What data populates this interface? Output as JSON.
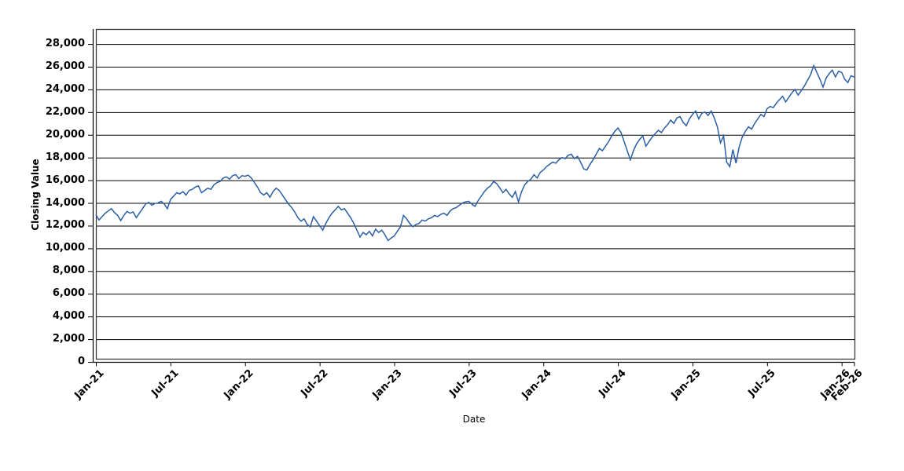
{
  "chart_data": {
    "type": "line",
    "title": "",
    "xlabel": "Date",
    "ylabel": "Closing Value",
    "grid": "horizontal",
    "legend": "none",
    "line_color": "#2A5FA5",
    "grid_color": "#000000",
    "border_color": "#3a3a3a",
    "ylim": [
      0,
      29300
    ],
    "x_range": [
      "Jan-21",
      "Feb-26"
    ],
    "x_ticks": [
      {
        "label": "Jan-21",
        "month": 0
      },
      {
        "label": "Jul-21",
        "month": 6
      },
      {
        "label": "Jan-22",
        "month": 12
      },
      {
        "label": "Jul-22",
        "month": 18
      },
      {
        "label": "Jan-23",
        "month": 24
      },
      {
        "label": "Jul-23",
        "month": 30
      },
      {
        "label": "Jan-24",
        "month": 36
      },
      {
        "label": "Jul-24",
        "month": 42
      },
      {
        "label": "Jan-25",
        "month": 48
      },
      {
        "label": "Jul-25",
        "month": 54
      },
      {
        "label": "Jan-26",
        "month": 60
      },
      {
        "label": "Feb-26",
        "month": 61
      }
    ],
    "y_ticks": [
      {
        "label": "0",
        "value": 0
      },
      {
        "label": "2,000",
        "value": 2000
      },
      {
        "label": "4,000",
        "value": 4000
      },
      {
        "label": "6,000",
        "value": 6000
      },
      {
        "label": "8,000",
        "value": 8000
      },
      {
        "label": "10,000",
        "value": 10000
      },
      {
        "label": "12,000",
        "value": 12000
      },
      {
        "label": "14,000",
        "value": 14000
      },
      {
        "label": "16,000",
        "value": 16000
      },
      {
        "label": "18,000",
        "value": 18000
      },
      {
        "label": "20,000",
        "value": 20000
      },
      {
        "label": "22,000",
        "value": 22000
      },
      {
        "label": "24,000",
        "value": 24000
      },
      {
        "label": "26,000",
        "value": 26000
      },
      {
        "label": "28,000",
        "value": 28000
      }
    ],
    "sample_interval_months": 0.25,
    "series": [
      {
        "name": "Closing Value",
        "values": [
          12950,
          12500,
          12800,
          13100,
          13300,
          13500,
          13150,
          12900,
          12450,
          12900,
          13250,
          13100,
          13200,
          12700,
          13100,
          13500,
          13900,
          14050,
          13800,
          13950,
          14000,
          14150,
          13900,
          13500,
          14300,
          14600,
          14900,
          14800,
          15000,
          14700,
          15100,
          15200,
          15400,
          15500,
          14900,
          15100,
          15300,
          15200,
          15600,
          15800,
          15900,
          16200,
          16300,
          16100,
          16400,
          16500,
          16150,
          16400,
          16350,
          16450,
          16200,
          15800,
          15400,
          14900,
          14700,
          14900,
          14500,
          15000,
          15300,
          15100,
          14700,
          14300,
          13900,
          13600,
          13200,
          12700,
          12400,
          12600,
          12100,
          11900,
          12800,
          12400,
          12000,
          11600,
          12200,
          12700,
          13100,
          13400,
          13700,
          13400,
          13500,
          13100,
          12700,
          12200,
          11600,
          11000,
          11400,
          11200,
          11500,
          11100,
          11700,
          11400,
          11600,
          11200,
          10700,
          10900,
          11100,
          11500,
          11900,
          12900,
          12600,
          12200,
          11900,
          12100,
          12200,
          12500,
          12400,
          12600,
          12700,
          12900,
          12800,
          13000,
          13100,
          12900,
          13300,
          13500,
          13600,
          13800,
          14000,
          14100,
          14150,
          13900,
          13700,
          14200,
          14600,
          15000,
          15300,
          15500,
          15900,
          15700,
          15300,
          14900,
          15200,
          14800,
          14500,
          15000,
          14100,
          15000,
          15600,
          15900,
          16100,
          16500,
          16200,
          16700,
          16900,
          17200,
          17400,
          17600,
          17500,
          17800,
          18000,
          17900,
          18200,
          18300,
          17900,
          18100,
          17600,
          17000,
          16900,
          17400,
          17800,
          18300,
          18800,
          18600,
          19000,
          19400,
          19900,
          20300,
          20600,
          20200,
          19400,
          18600,
          17800,
          18600,
          19200,
          19600,
          19900,
          19000,
          19400,
          19800,
          20100,
          20400,
          20200,
          20600,
          20900,
          21300,
          21000,
          21500,
          21600,
          21100,
          20800,
          21400,
          21800,
          22100,
          21400,
          21900,
          22000,
          21700,
          22100,
          21500,
          20700,
          19300,
          19900,
          17600,
          17200,
          18700,
          17500,
          18900,
          19800,
          20300,
          20700,
          20500,
          21000,
          21400,
          21800,
          21600,
          22300,
          22500,
          22400,
          22800,
          23100,
          23400,
          22900,
          23300,
          23700,
          24000,
          23500,
          23900,
          24300,
          24800,
          25300,
          26100,
          25500,
          24900,
          24200,
          25000,
          25400,
          25700,
          25100,
          25600,
          25500,
          24900,
          24600,
          25200,
          25100
        ]
      }
    ]
  }
}
